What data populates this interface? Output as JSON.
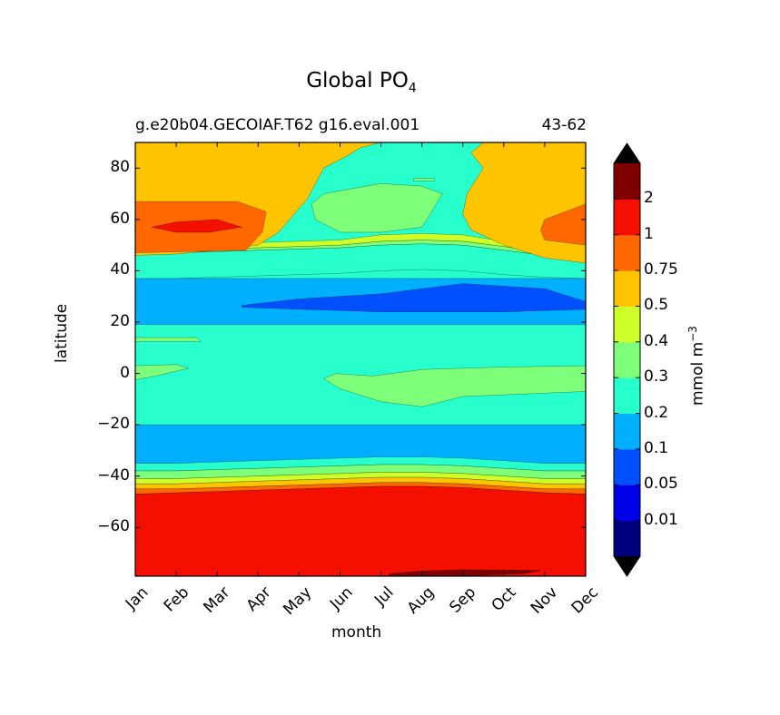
{
  "chart_data": {
    "type": "filled-contour",
    "title": "Global PO",
    "title_subscript": "4",
    "subtitle_left": "g.e20b04.GECOIAF.T62 g16.eval.001",
    "subtitle_right": "43-62",
    "xlabel": "month",
    "ylabel": "latitude",
    "x": [
      "Jan",
      "Feb",
      "Mar",
      "Apr",
      "May",
      "Jun",
      "Jul",
      "Aug",
      "Sep",
      "Oct",
      "Nov",
      "Dec"
    ],
    "xlim": [
      1,
      12
    ],
    "ylim": [
      -79,
      90
    ],
    "yticks": [
      80,
      60,
      40,
      20,
      0,
      -20,
      -40,
      -60
    ],
    "yticklabels": [
      "80",
      "60",
      "40",
      "20",
      "0",
      "−20",
      "−40",
      "−60"
    ],
    "colorbar": {
      "label": "mmol m",
      "label_exponent": "−3",
      "extend": "both",
      "tick_labels": [
        "0.01",
        "0.05",
        "0.1",
        "0.2",
        "0.3",
        "0.4",
        "0.5",
        "0.75",
        "1",
        "2"
      ],
      "levels": [
        0.01,
        0.05,
        0.1,
        0.2,
        0.3,
        0.4,
        0.5,
        0.75,
        1,
        2
      ],
      "colors": [
        "#00007f",
        "#0000e8",
        "#0050ff",
        "#00b0ff",
        "#27ffcd",
        "#7dff7a",
        "#cdff29",
        "#ffc400",
        "#ff6800",
        "#f50f00",
        "#7f0000"
      ],
      "under_color": "#000000",
      "over_color": "#000000"
    },
    "bands_description": "latitude bands of PO4 concentration per month (data units: degrees latitude)",
    "regions": [
      {
        "level": "0.2-0.3",
        "lat_range": [
          -20,
          19
        ],
        "months": "all"
      },
      {
        "level": "0.3-0.4",
        "lat_range": [
          -13,
          3
        ],
        "months": "Jul-Dec"
      },
      {
        "level": "0.1-0.2",
        "lat_range": [
          -35,
          -20
        ],
        "months": "all"
      },
      {
        "level": "0.1-0.2",
        "lat_range": [
          19,
          38
        ],
        "months": "all"
      },
      {
        "level": "0.05-0.1",
        "lat_range": [
          24,
          35
        ],
        "months": "Apr-Dec"
      },
      {
        "level": "1-2",
        "lat_range": [
          -79,
          -46
        ],
        "months": "all"
      },
      {
        "level": ">2",
        "lat_range": [
          -79,
          -76
        ],
        "months": "Aug-Nov"
      },
      {
        "level": "0.5-0.75",
        "lat_range": [
          45,
          90
        ],
        "months": "Jan-Jun, Oct-Dec"
      },
      {
        "level": "0.75-1",
        "lat_range": [
          47,
          67
        ],
        "months": "Jan-Mar, Nov-Dec"
      },
      {
        "level": "1-2",
        "lat_range": [
          55,
          59
        ],
        "months": "Feb-Mar"
      }
    ]
  }
}
